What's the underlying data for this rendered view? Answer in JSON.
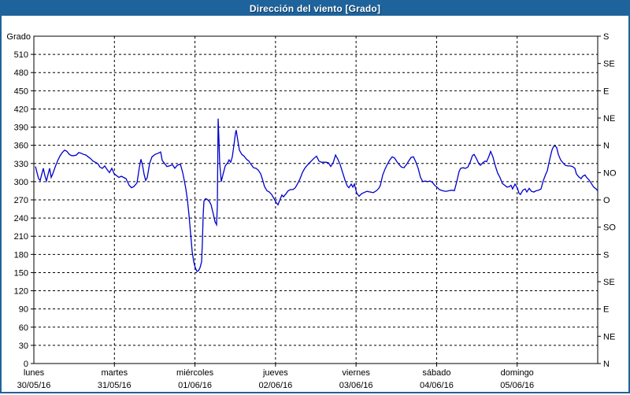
{
  "window": {
    "title": "Dirección del viento [Grado]",
    "titlebar_color": "#1e639b",
    "border_color": "#1e639b",
    "background": "#ffffff"
  },
  "chart_data": {
    "type": "line",
    "title": "Dirección del viento [Grado]",
    "line_color": "#0000cc",
    "grid": "dashed-black",
    "legend_position": "none",
    "y_axis_left": {
      "label": "Grado",
      "min": 0,
      "max": 540,
      "tick_step": 30,
      "ticks": [
        0,
        30,
        60,
        90,
        120,
        150,
        180,
        210,
        240,
        270,
        300,
        330,
        360,
        390,
        420,
        450,
        480,
        510
      ]
    },
    "y_axis_right": {
      "ticks": [
        {
          "value": 0,
          "label": "N"
        },
        {
          "value": 45,
          "label": "NE"
        },
        {
          "value": 90,
          "label": "E"
        },
        {
          "value": 135,
          "label": "SE"
        },
        {
          "value": 180,
          "label": "S"
        },
        {
          "value": 225,
          "label": "SO"
        },
        {
          "value": 270,
          "label": "O"
        },
        {
          "value": 315,
          "label": "NO"
        },
        {
          "value": 360,
          "label": "N"
        },
        {
          "value": 405,
          "label": "NE"
        },
        {
          "value": 450,
          "label": "E"
        },
        {
          "value": 495,
          "label": "SE"
        },
        {
          "value": 540,
          "label": "S"
        }
      ]
    },
    "x_axis": {
      "range_days": [
        0,
        7
      ],
      "days": [
        {
          "name": "lunes",
          "date": "30/05/16"
        },
        {
          "name": "martes",
          "date": "31/05/16"
        },
        {
          "name": "miércoles",
          "date": "01/06/16"
        },
        {
          "name": "jueves",
          "date": "02/06/16"
        },
        {
          "name": "viernes",
          "date": "03/06/16"
        },
        {
          "name": "sábado",
          "date": "04/06/16"
        },
        {
          "name": "domingo",
          "date": "05/06/16"
        }
      ]
    },
    "series": [
      {
        "name": "Dirección del viento",
        "points": [
          [
            0.02,
            325
          ],
          [
            0.039,
            315
          ],
          [
            0.059,
            305
          ],
          [
            0.078,
            302
          ],
          [
            0.098,
            312
          ],
          [
            0.117,
            322
          ],
          [
            0.137,
            310
          ],
          [
            0.156,
            301
          ],
          [
            0.176,
            312
          ],
          [
            0.196,
            322
          ],
          [
            0.215,
            307
          ],
          [
            0.235,
            313
          ],
          [
            0.264,
            324
          ],
          [
            0.293,
            334
          ],
          [
            0.323,
            342
          ],
          [
            0.352,
            348
          ],
          [
            0.381,
            352
          ],
          [
            0.411,
            350
          ],
          [
            0.44,
            345
          ],
          [
            0.469,
            343
          ],
          [
            0.499,
            343
          ],
          [
            0.528,
            344
          ],
          [
            0.557,
            348
          ],
          [
            0.587,
            347
          ],
          [
            0.616,
            345
          ],
          [
            0.645,
            344
          ],
          [
            0.675,
            341
          ],
          [
            0.704,
            338
          ],
          [
            0.733,
            334
          ],
          [
            0.763,
            332
          ],
          [
            0.792,
            330
          ],
          [
            0.821,
            324
          ],
          [
            0.851,
            322
          ],
          [
            0.88,
            326
          ],
          [
            0.909,
            320
          ],
          [
            0.939,
            315
          ],
          [
            0.968,
            322
          ],
          [
            0.997,
            313
          ],
          [
            1.027,
            310
          ],
          [
            1.056,
            307
          ],
          [
            1.085,
            309
          ],
          [
            1.115,
            307
          ],
          [
            1.144,
            305
          ],
          [
            1.183,
            294
          ],
          [
            1.212,
            290
          ],
          [
            1.242,
            292
          ],
          [
            1.281,
            298
          ],
          [
            1.31,
            324
          ],
          [
            1.33,
            337
          ],
          [
            1.349,
            327
          ],
          [
            1.369,
            312
          ],
          [
            1.388,
            302
          ],
          [
            1.408,
            307
          ],
          [
            1.437,
            330
          ],
          [
            1.466,
            341
          ],
          [
            1.506,
            345
          ],
          [
            1.545,
            347
          ],
          [
            1.574,
            349
          ],
          [
            1.594,
            335
          ],
          [
            1.623,
            330
          ],
          [
            1.652,
            325
          ],
          [
            1.682,
            326
          ],
          [
            1.721,
            328
          ],
          [
            1.75,
            322
          ],
          [
            1.779,
            327
          ],
          [
            1.818,
            329
          ],
          [
            1.848,
            315
          ],
          [
            1.867,
            302
          ],
          [
            1.887,
            288
          ],
          [
            1.906,
            270
          ],
          [
            1.926,
            245
          ],
          [
            1.946,
            215
          ],
          [
            1.965,
            185
          ],
          [
            1.985,
            168
          ],
          [
            2.004,
            158
          ],
          [
            2.024,
            152
          ],
          [
            2.043,
            153
          ],
          [
            2.063,
            158
          ],
          [
            2.082,
            168
          ],
          [
            2.092,
            200
          ],
          [
            2.102,
            245
          ],
          [
            2.112,
            268
          ],
          [
            2.131,
            272
          ],
          [
            2.151,
            271
          ],
          [
            2.18,
            267
          ],
          [
            2.2,
            262
          ],
          [
            2.229,
            246
          ],
          [
            2.249,
            234
          ],
          [
            2.268,
            229
          ],
          [
            2.278,
            260
          ],
          [
            2.288,
            404
          ],
          [
            2.297,
            370
          ],
          [
            2.307,
            330
          ],
          [
            2.327,
            300
          ],
          [
            2.346,
            311
          ],
          [
            2.376,
            326
          ],
          [
            2.405,
            331
          ],
          [
            2.424,
            336
          ],
          [
            2.444,
            332
          ],
          [
            2.464,
            341
          ],
          [
            2.483,
            360
          ],
          [
            2.503,
            380
          ],
          [
            2.512,
            385
          ],
          [
            2.532,
            368
          ],
          [
            2.552,
            352
          ],
          [
            2.581,
            345
          ],
          [
            2.61,
            342
          ],
          [
            2.64,
            337
          ],
          [
            2.669,
            334
          ],
          [
            2.698,
            328
          ],
          [
            2.728,
            323
          ],
          [
            2.757,
            322
          ],
          [
            2.786,
            319
          ],
          [
            2.816,
            313
          ],
          [
            2.835,
            305
          ],
          [
            2.864,
            292
          ],
          [
            2.894,
            285
          ],
          [
            2.923,
            283
          ],
          [
            2.952,
            279
          ],
          [
            2.982,
            272
          ],
          [
            3.011,
            265
          ],
          [
            3.031,
            262
          ],
          [
            3.06,
            272
          ],
          [
            3.08,
            278
          ],
          [
            3.099,
            275
          ],
          [
            3.129,
            280
          ],
          [
            3.158,
            285
          ],
          [
            3.187,
            287
          ],
          [
            3.217,
            287
          ],
          [
            3.246,
            290
          ],
          [
            3.275,
            297
          ],
          [
            3.305,
            305
          ],
          [
            3.334,
            315
          ],
          [
            3.363,
            322
          ],
          [
            3.393,
            327
          ],
          [
            3.422,
            331
          ],
          [
            3.451,
            335
          ],
          [
            3.481,
            339
          ],
          [
            3.51,
            342
          ],
          [
            3.539,
            334
          ],
          [
            3.569,
            332
          ],
          [
            3.598,
            332
          ],
          [
            3.627,
            332
          ],
          [
            3.657,
            331
          ],
          [
            3.686,
            325
          ],
          [
            3.715,
            331
          ],
          [
            3.745,
            344
          ],
          [
            3.774,
            337
          ],
          [
            3.803,
            328
          ],
          [
            3.833,
            315
          ],
          [
            3.862,
            303
          ],
          [
            3.891,
            293
          ],
          [
            3.911,
            290
          ],
          [
            3.94,
            296
          ],
          [
            3.96,
            291
          ],
          [
            3.979,
            296
          ],
          [
            4.008,
            281
          ],
          [
            4.038,
            276
          ],
          [
            4.067,
            280
          ],
          [
            4.096,
            282
          ],
          [
            4.135,
            284
          ],
          [
            4.175,
            283
          ],
          [
            4.214,
            282
          ],
          [
            4.253,
            285
          ],
          [
            4.282,
            289
          ],
          [
            4.302,
            294
          ],
          [
            4.331,
            311
          ],
          [
            4.36,
            321
          ],
          [
            4.39,
            329
          ],
          [
            4.419,
            336
          ],
          [
            4.448,
            341
          ],
          [
            4.478,
            339
          ],
          [
            4.507,
            333
          ],
          [
            4.536,
            328
          ],
          [
            4.565,
            324
          ],
          [
            4.595,
            323
          ],
          [
            4.624,
            328
          ],
          [
            4.653,
            334
          ],
          [
            4.683,
            340
          ],
          [
            4.712,
            341
          ],
          [
            4.741,
            333
          ],
          [
            4.771,
            322
          ],
          [
            4.8,
            307
          ],
          [
            4.829,
            300
          ],
          [
            4.859,
            301
          ],
          [
            4.888,
            300
          ],
          [
            4.917,
            301
          ],
          [
            4.947,
            299
          ],
          [
            4.976,
            294
          ],
          [
            5.005,
            291
          ],
          [
            5.035,
            287
          ],
          [
            5.074,
            285
          ],
          [
            5.113,
            284
          ],
          [
            5.152,
            285
          ],
          [
            5.191,
            286
          ],
          [
            5.221,
            285
          ],
          [
            5.25,
            300
          ],
          [
            5.279,
            317
          ],
          [
            5.299,
            322
          ],
          [
            5.328,
            323
          ],
          [
            5.357,
            322
          ],
          [
            5.387,
            324
          ],
          [
            5.416,
            332
          ],
          [
            5.445,
            343
          ],
          [
            5.465,
            345
          ],
          [
            5.494,
            338
          ],
          [
            5.523,
            330
          ],
          [
            5.543,
            327
          ],
          [
            5.572,
            331
          ],
          [
            5.602,
            334
          ],
          [
            5.621,
            333
          ],
          [
            5.65,
            342
          ],
          [
            5.67,
            350
          ],
          [
            5.699,
            341
          ],
          [
            5.729,
            326
          ],
          [
            5.758,
            314
          ],
          [
            5.787,
            307
          ],
          [
            5.816,
            297
          ],
          [
            5.846,
            294
          ],
          [
            5.875,
            291
          ],
          [
            5.904,
            292
          ],
          [
            5.924,
            294
          ],
          [
            5.943,
            288
          ],
          [
            5.973,
            296
          ],
          [
            6.002,
            290
          ],
          [
            6.022,
            281
          ],
          [
            6.041,
            279
          ],
          [
            6.071,
            286
          ],
          [
            6.1,
            288
          ],
          [
            6.12,
            283
          ],
          [
            6.149,
            289
          ],
          [
            6.178,
            284
          ],
          [
            6.208,
            283
          ],
          [
            6.237,
            285
          ],
          [
            6.266,
            286
          ],
          [
            6.296,
            288
          ],
          [
            6.325,
            302
          ],
          [
            6.354,
            312
          ],
          [
            6.374,
            318
          ],
          [
            6.393,
            330
          ],
          [
            6.413,
            342
          ],
          [
            6.432,
            352
          ],
          [
            6.452,
            358
          ],
          [
            6.471,
            359
          ],
          [
            6.491,
            356
          ],
          [
            6.511,
            345
          ],
          [
            6.54,
            336
          ],
          [
            6.569,
            331
          ],
          [
            6.598,
            327
          ],
          [
            6.628,
            326
          ],
          [
            6.657,
            326
          ],
          [
            6.686,
            325
          ],
          [
            6.716,
            322
          ],
          [
            6.735,
            313
          ],
          [
            6.764,
            308
          ],
          [
            6.794,
            305
          ],
          [
            6.813,
            309
          ],
          [
            6.843,
            311
          ],
          [
            6.862,
            307
          ],
          [
            6.891,
            303
          ],
          [
            6.921,
            297
          ],
          [
            6.95,
            291
          ],
          [
            6.98,
            288
          ],
          [
            6.999,
            285
          ]
        ]
      }
    ]
  }
}
